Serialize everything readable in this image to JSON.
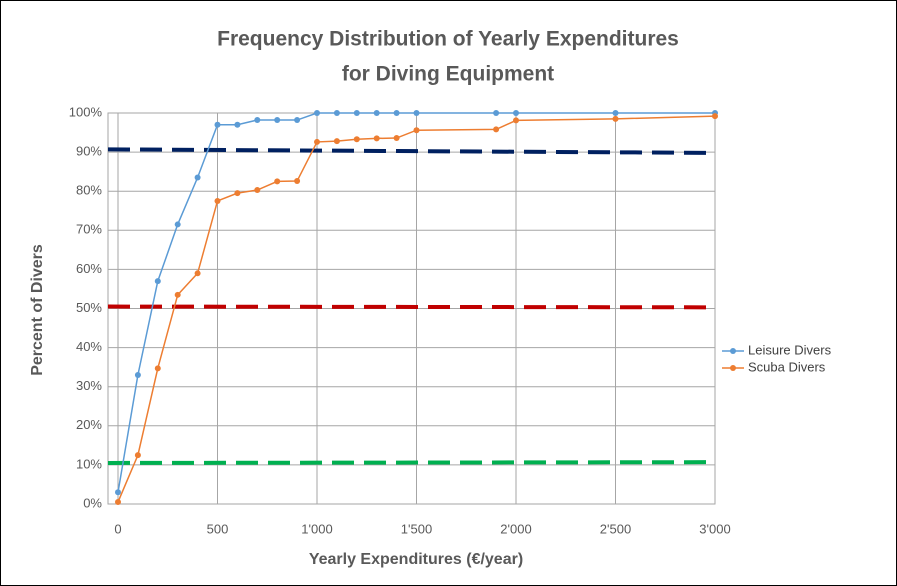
{
  "chart_data": {
    "type": "line",
    "title": [
      "Frequency Distribution of Yearly Expenditures",
      "for Diving Equipment"
    ],
    "x_label": "Yearly Expenditures (€/year)",
    "y_label": "Percent of Divers",
    "xlim": [
      0,
      3000
    ],
    "ylim": [
      0,
      100
    ],
    "xticks": [
      0,
      500,
      {
        "value": 1000,
        "label": "1'000"
      },
      {
        "value": 1500,
        "label": "1'500"
      },
      {
        "value": 2000,
        "label": "2'000"
      },
      {
        "value": 2500,
        "label": "2'500"
      },
      {
        "value": 3000,
        "label": "3'000"
      }
    ],
    "yticks": [
      {
        "value": 0,
        "label": "0%"
      },
      {
        "value": 10,
        "label": "10%"
      },
      {
        "value": 20,
        "label": "20%"
      },
      {
        "value": 30,
        "label": "30%"
      },
      {
        "value": 40,
        "label": "40%"
      },
      {
        "value": 50,
        "label": "50%"
      },
      {
        "value": 60,
        "label": "60%"
      },
      {
        "value": 70,
        "label": "70%"
      },
      {
        "value": 80,
        "label": "80%"
      },
      {
        "value": 90,
        "label": "90%"
      },
      {
        "value": 100,
        "label": "100%"
      }
    ],
    "grid": true,
    "legend": "right",
    "x": [
      0,
      100,
      200,
      300,
      400,
      500,
      600,
      700,
      800,
      900,
      1000,
      1100,
      1200,
      1300,
      1400,
      1500,
      1900,
      2000,
      2500,
      3000
    ],
    "series": [
      {
        "name": "Leisure Divers",
        "color": "#5b9bd5",
        "values": [
          3,
          33,
          57,
          71.5,
          83.5,
          97,
          97,
          98.2,
          98.2,
          98.2,
          100,
          100,
          100,
          100,
          100,
          100,
          100,
          100,
          100,
          100
        ]
      },
      {
        "name": "Scuba Divers",
        "color": "#ed7d31",
        "values": [
          0.5,
          12.5,
          34.7,
          53.5,
          59,
          77.5,
          79.5,
          80.3,
          82.5,
          82.6,
          92.6,
          92.8,
          93.3,
          93.5,
          93.6,
          95.6,
          95.8,
          98.1,
          98.5,
          99.2
        ]
      }
    ],
    "reference_lines": [
      {
        "color": "#002060",
        "x": [
          0,
          3000
        ],
        "values": [
          90.7,
          89.8
        ]
      },
      {
        "color": "#c00000",
        "x": [
          0,
          3000
        ],
        "values": [
          50.5,
          50.3
        ]
      },
      {
        "color": "#00b050",
        "x": [
          0,
          3000
        ],
        "values": [
          10.5,
          10.7
        ]
      }
    ]
  }
}
